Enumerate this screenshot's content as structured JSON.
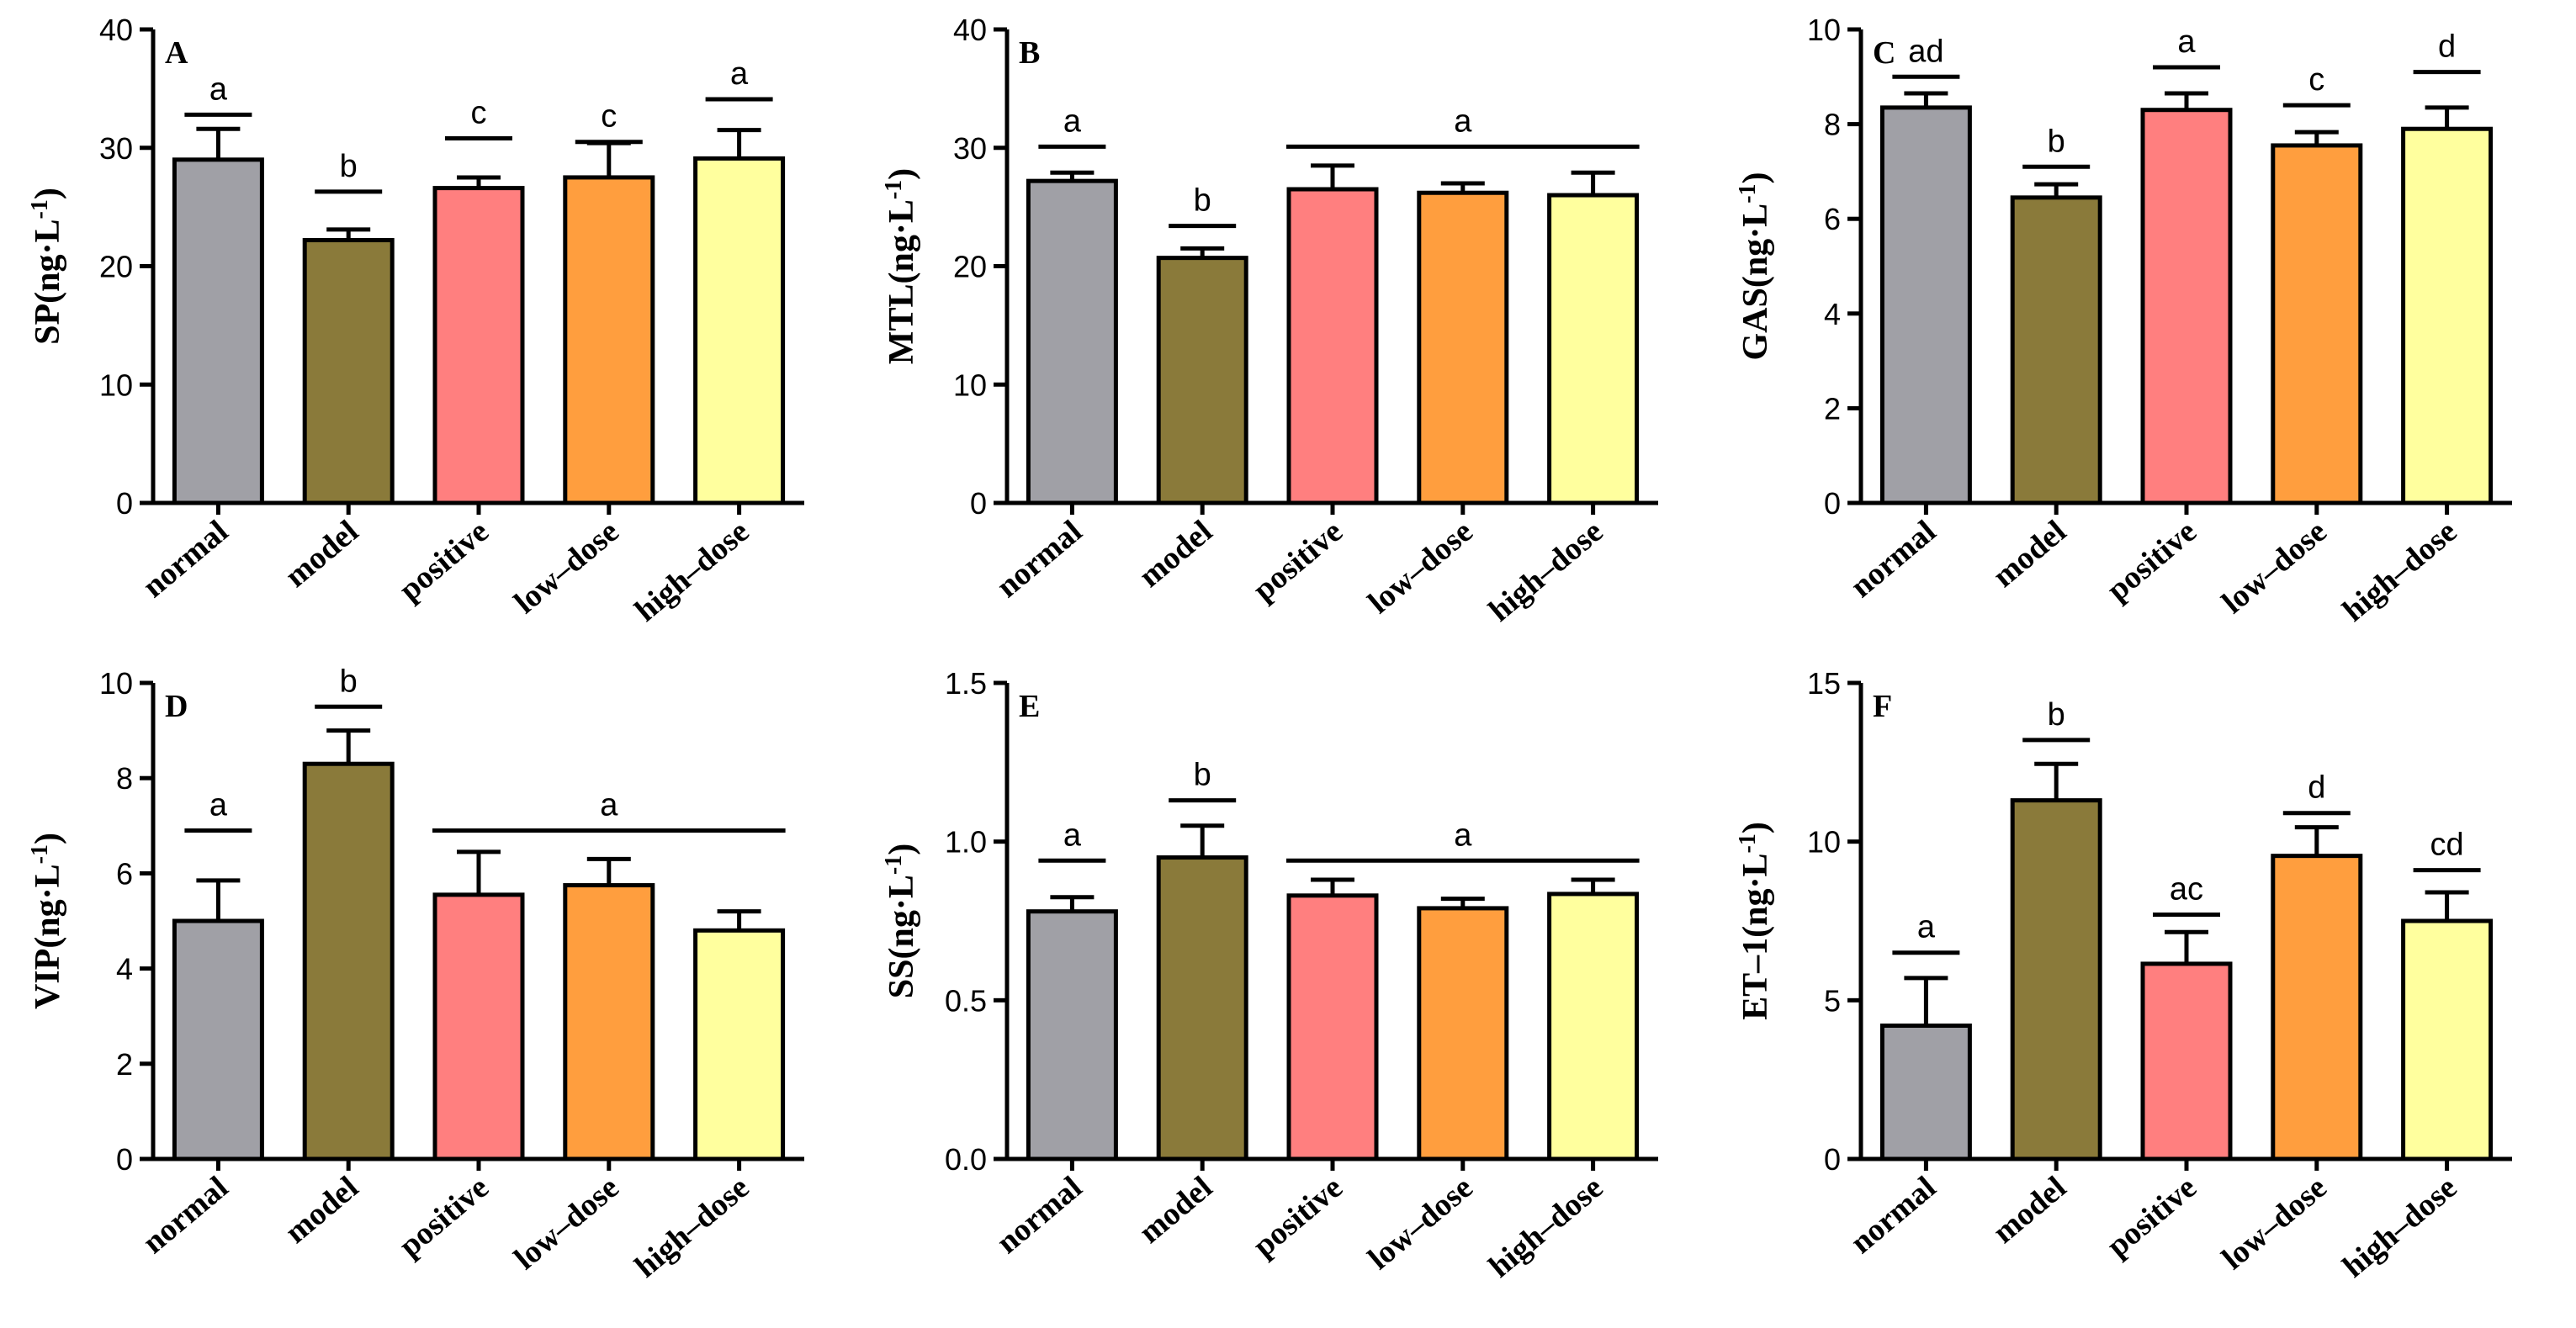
{
  "colors": {
    "normal": "#A0A0A6",
    "model": "#8A7A3A",
    "positive": "#FF7F7F",
    "low-dose": "#FF9E3E",
    "high-dose": "#FFFF9E",
    "stroke": "#000000"
  },
  "chart_data": [
    {
      "type": "bar",
      "panel": "A",
      "ylabel": "SP(ng·L",
      "ylabel_sup": "-1",
      "ylabel_end": ")",
      "categories": [
        "normal",
        "model",
        "positive",
        "low–dose",
        "high–dose"
      ],
      "values": [
        29,
        22.2,
        26.6,
        27.5,
        29.1
      ],
      "errors": [
        2.6,
        0.9,
        0.9,
        2.9,
        2.4
      ],
      "ylim": [
        0,
        40
      ],
      "yticks": [
        "0",
        "10",
        "20",
        "30",
        "40"
      ],
      "significance": [
        {
          "from": 0,
          "to": 0,
          "label": "a",
          "y": 32.8
        },
        {
          "from": 1,
          "to": 1,
          "label": "b",
          "y": 26.3
        },
        {
          "from": 2,
          "to": 2,
          "label": "c",
          "y": 30.8
        },
        {
          "from": 3,
          "to": 3,
          "label": "c",
          "y": 30.5
        },
        {
          "from": 4,
          "to": 4,
          "label": "a",
          "y": 34.1
        }
      ]
    },
    {
      "type": "bar",
      "panel": "B",
      "ylabel": "MTL(ng·L",
      "ylabel_sup": "-1",
      "ylabel_end": ")",
      "categories": [
        "normal",
        "model",
        "positive",
        "low–dose",
        "high–dose"
      ],
      "values": [
        27.2,
        20.7,
        26.5,
        26.2,
        26
      ],
      "errors": [
        0.7,
        0.8,
        2,
        0.8,
        1.9
      ],
      "ylim": [
        0,
        40
      ],
      "yticks": [
        "0",
        "10",
        "20",
        "30",
        "40"
      ],
      "significance": [
        {
          "from": 0,
          "to": 0,
          "label": "a",
          "y": 30.1
        },
        {
          "from": 1,
          "to": 1,
          "label": "b",
          "y": 23.4
        },
        {
          "from": 2,
          "to": 4,
          "label": "a",
          "y": 30.1
        }
      ]
    },
    {
      "type": "bar",
      "panel": "C",
      "ylabel": "GAS(ng·L",
      "ylabel_sup": "-1",
      "ylabel_end": ")",
      "categories": [
        "normal",
        "model",
        "positive",
        "low–dose",
        "high–dose"
      ],
      "values": [
        8.35,
        6.45,
        8.3,
        7.55,
        7.9
      ],
      "errors": [
        0.3,
        0.28,
        0.35,
        0.28,
        0.45
      ],
      "ylim": [
        0,
        10
      ],
      "yticks": [
        "0",
        "2",
        "4",
        "6",
        "8",
        "10"
      ],
      "significance": [
        {
          "from": 0,
          "to": 0,
          "label": "ad",
          "y": 9
        },
        {
          "from": 1,
          "to": 1,
          "label": "b",
          "y": 7.1
        },
        {
          "from": 2,
          "to": 2,
          "label": "a",
          "y": 9.2
        },
        {
          "from": 3,
          "to": 3,
          "label": "c",
          "y": 8.4
        },
        {
          "from": 4,
          "to": 4,
          "label": "d",
          "y": 9.1
        }
      ]
    },
    {
      "type": "bar",
      "panel": "D",
      "ylabel": "VIP(ng·L",
      "ylabel_sup": "-1",
      "ylabel_end": ")",
      "categories": [
        "normal",
        "model",
        "positive",
        "low–dose",
        "high–dose"
      ],
      "values": [
        5,
        8.3,
        5.55,
        5.75,
        4.8
      ],
      "errors": [
        0.85,
        0.7,
        0.9,
        0.55,
        0.4
      ],
      "ylim": [
        0,
        10
      ],
      "yticks": [
        "0",
        "2",
        "4",
        "6",
        "8",
        "10"
      ],
      "significance": [
        {
          "from": 0,
          "to": 0,
          "label": "a",
          "y": 6.9
        },
        {
          "from": 1,
          "to": 1,
          "label": "b",
          "y": 9.5
        },
        {
          "from": 2,
          "to": 4,
          "label": "a",
          "y": 6.9
        }
      ]
    },
    {
      "type": "bar",
      "panel": "E",
      "ylabel": "SS(ng·L",
      "ylabel_sup": "-1",
      "ylabel_end": ")",
      "categories": [
        "normal",
        "model",
        "positive",
        "low–dose",
        "high–dose"
      ],
      "values": [
        0.78,
        0.95,
        0.83,
        0.79,
        0.835
      ],
      "errors": [
        0.045,
        0.1,
        0.05,
        0.03,
        0.045
      ],
      "ylim": [
        0,
        1.5
      ],
      "yticks": [
        "0.0",
        "0.5",
        "1.0",
        "1.5"
      ],
      "significance": [
        {
          "from": 0,
          "to": 0,
          "label": "a",
          "y": 0.94
        },
        {
          "from": 1,
          "to": 1,
          "label": "b",
          "y": 1.13
        },
        {
          "from": 2,
          "to": 4,
          "label": "a",
          "y": 0.94
        }
      ]
    },
    {
      "type": "bar",
      "panel": "F",
      "ylabel": "ET–1(ng·L",
      "ylabel_sup": "-1",
      "ylabel_end": ")",
      "categories": [
        "normal",
        "model",
        "positive",
        "low–dose",
        "high–dose"
      ],
      "values": [
        4.2,
        11.3,
        6.15,
        9.55,
        7.5
      ],
      "errors": [
        1.5,
        1.15,
        1,
        0.9,
        0.9
      ],
      "ylim": [
        0,
        15
      ],
      "yticks": [
        "0",
        "5",
        "10",
        "15"
      ],
      "significance": [
        {
          "from": 0,
          "to": 0,
          "label": "a",
          "y": 6.5
        },
        {
          "from": 1,
          "to": 1,
          "label": "b",
          "y": 13.2
        },
        {
          "from": 2,
          "to": 2,
          "label": "ac",
          "y": 7.7
        },
        {
          "from": 3,
          "to": 3,
          "label": "d",
          "y": 10.9
        },
        {
          "from": 4,
          "to": 4,
          "label": "cd",
          "y": 9.1
        }
      ]
    }
  ]
}
